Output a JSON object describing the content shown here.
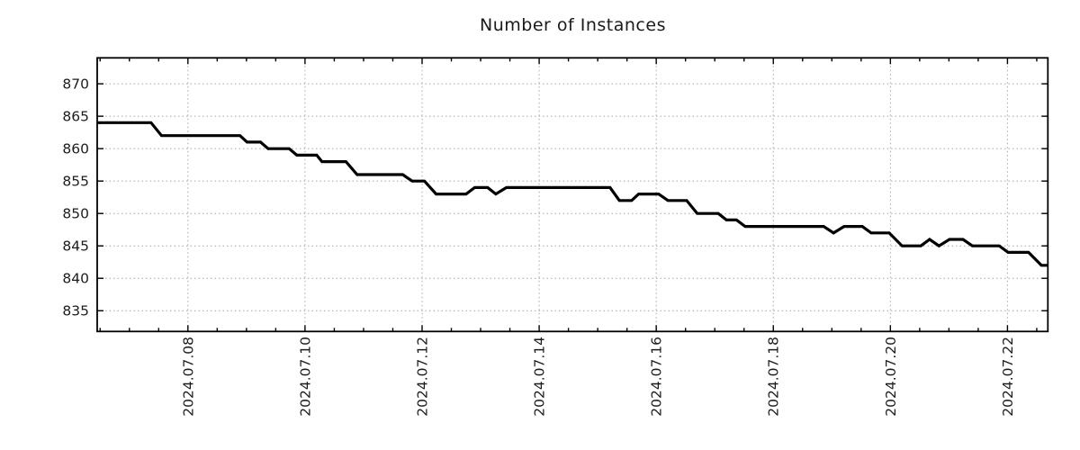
{
  "chart_data": {
    "type": "line",
    "title": "Number of Instances",
    "xlabel": "",
    "ylabel": "",
    "grid": true,
    "legend": false,
    "xlim": [
      6.45,
      22.69
    ],
    "ylim": [
      831.8,
      874.0
    ],
    "x_axis_unit": "day of 2024.07 (decimal = fraction of day)",
    "x_major_ticks": [
      8,
      10,
      12,
      14,
      16,
      18,
      20,
      22
    ],
    "x_tick_labels": [
      "2024.07.08",
      "2024.07.10",
      "2024.07.12",
      "2024.07.14",
      "2024.07.16",
      "2024.07.18",
      "2024.07.20",
      "2024.07.22"
    ],
    "x_minor_step": 0.5,
    "y_major_ticks": [
      835,
      840,
      845,
      850,
      855,
      860,
      865,
      870
    ],
    "y_tick_labels": [
      "835",
      "840",
      "845",
      "850",
      "855",
      "860",
      "865",
      "870"
    ],
    "series": [
      {
        "name": "instances",
        "color": "#000000",
        "points": [
          [
            6.45,
            864
          ],
          [
            7.37,
            864
          ],
          [
            7.55,
            862
          ],
          [
            8.89,
            862
          ],
          [
            9.01,
            861
          ],
          [
            9.24,
            861
          ],
          [
            9.37,
            860
          ],
          [
            9.73,
            860
          ],
          [
            9.86,
            859
          ],
          [
            10.2,
            859
          ],
          [
            10.29,
            858
          ],
          [
            10.7,
            858
          ],
          [
            10.89,
            856
          ],
          [
            11.67,
            856
          ],
          [
            11.83,
            855
          ],
          [
            12.04,
            855
          ],
          [
            12.24,
            853
          ],
          [
            12.75,
            853
          ],
          [
            12.9,
            854
          ],
          [
            13.12,
            854
          ],
          [
            13.26,
            853
          ],
          [
            13.44,
            854
          ],
          [
            15.21,
            854
          ],
          [
            15.37,
            852
          ],
          [
            15.58,
            852
          ],
          [
            15.7,
            853
          ],
          [
            16.04,
            853
          ],
          [
            16.2,
            852
          ],
          [
            16.52,
            852
          ],
          [
            16.7,
            850
          ],
          [
            17.06,
            850
          ],
          [
            17.2,
            849
          ],
          [
            17.37,
            849
          ],
          [
            17.52,
            848
          ],
          [
            18.86,
            848
          ],
          [
            19.03,
            847
          ],
          [
            19.21,
            848
          ],
          [
            19.52,
            848
          ],
          [
            19.67,
            847
          ],
          [
            19.98,
            847
          ],
          [
            20.2,
            845
          ],
          [
            20.52,
            845
          ],
          [
            20.67,
            846
          ],
          [
            20.83,
            845
          ],
          [
            21.01,
            846
          ],
          [
            21.24,
            846
          ],
          [
            21.4,
            845
          ],
          [
            21.86,
            845
          ],
          [
            22.01,
            844
          ],
          [
            22.36,
            844
          ],
          [
            22.58,
            842
          ],
          [
            22.69,
            842
          ]
        ]
      }
    ],
    "style": {
      "line_color": "#000000",
      "grid_color": "#a6a6a6",
      "axis_color": "#000000",
      "text_color": "#1c1c1c",
      "background": "#ffffff"
    }
  }
}
